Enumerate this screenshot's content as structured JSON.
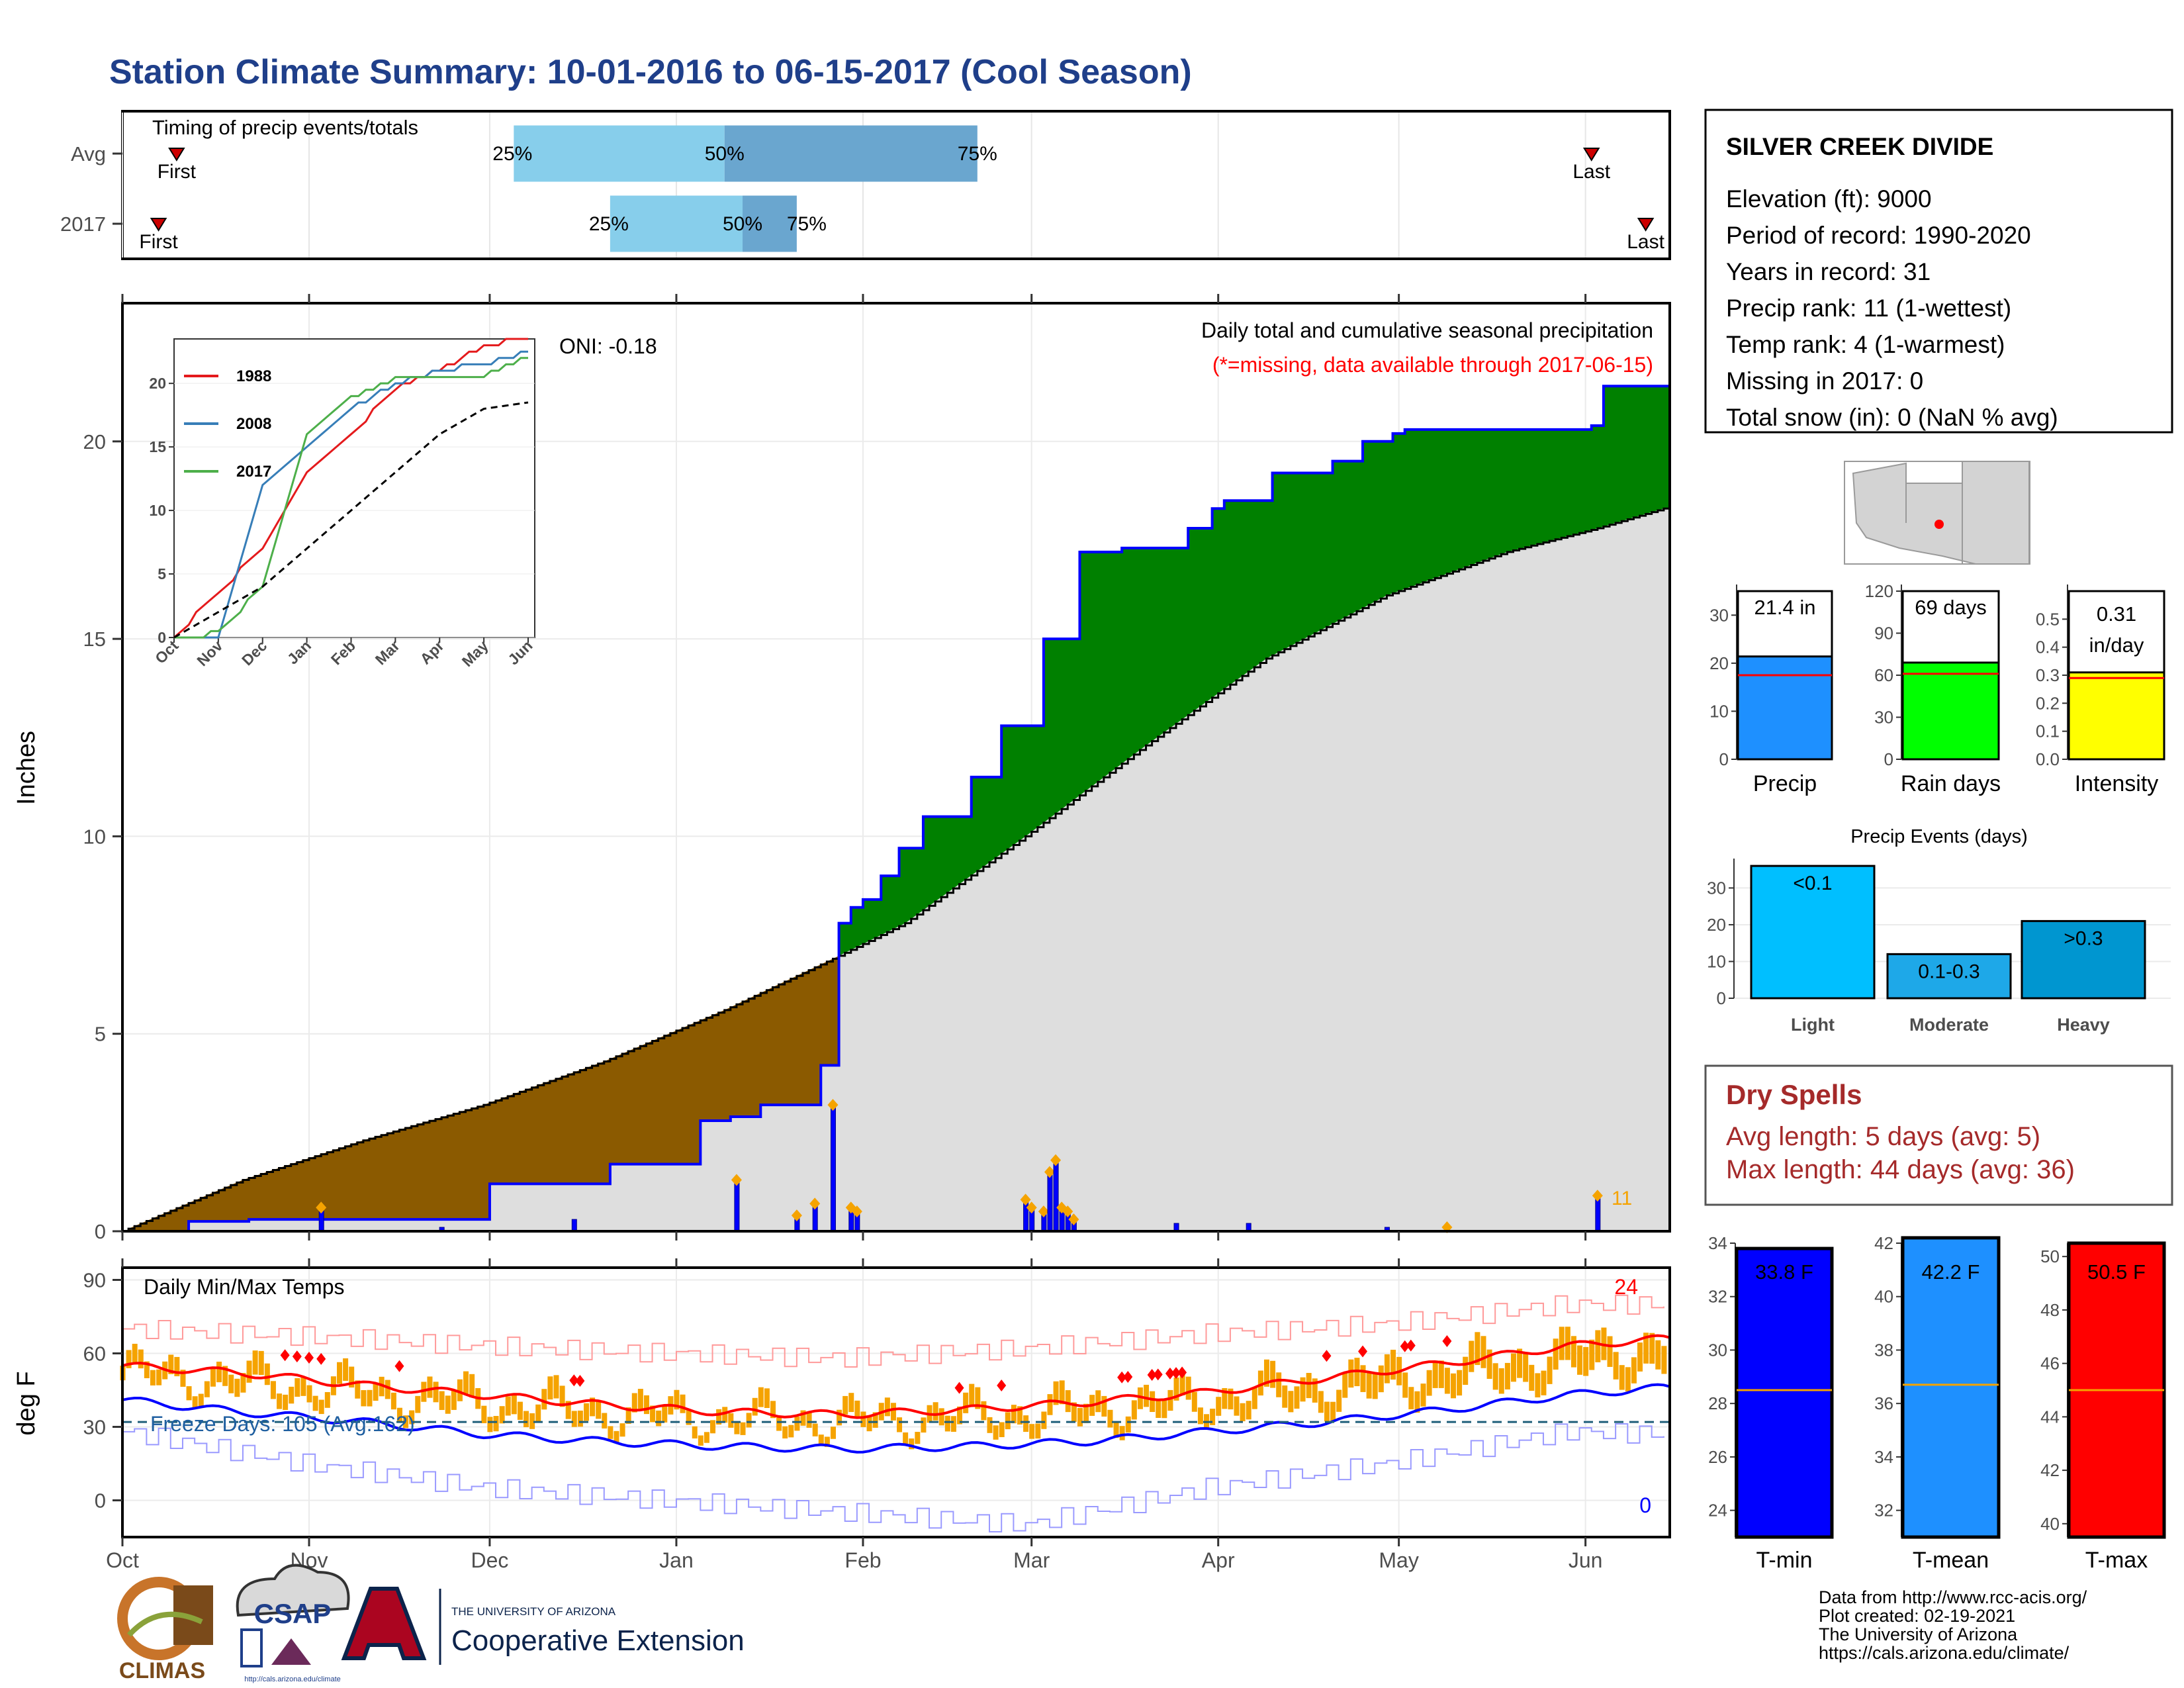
{
  "title": "Station Climate Summary: 10-01-2016 to 06-15-2017 (Cool Season)",
  "months": [
    "Oct",
    "Nov",
    "Dec",
    "Jan",
    "Feb",
    "Mar",
    "Apr",
    "May",
    "Jun"
  ],
  "timing": {
    "label": "Timing of precip events/totals",
    "rows": [
      {
        "label": "Avg",
        "first_label": "First",
        "last_label": "Last",
        "first_day": 9,
        "last_day": 244,
        "p25_label": "25%",
        "p50_label": "50%",
        "p75_label": "75%",
        "p25": 65,
        "p50": 100,
        "p75": 142
      },
      {
        "label": "2017",
        "first_label": "First",
        "last_label": "Last",
        "first_day": 6,
        "last_day": 253,
        "p25_label": "25%",
        "p50_label": "50%",
        "p75_label": "75%",
        "p25": 81,
        "p50": 103,
        "p75": 112
      }
    ]
  },
  "colors": {
    "accent_title": "#1f3f8a",
    "brown": "#8b5a00",
    "green": "#008000",
    "blue_line": "#0000ff",
    "grey": "#dedede",
    "orange": "#f5a300",
    "red": "#ff0000",
    "dry_red": "#a52a2a",
    "light_blue": "#87ceeb",
    "mid_blue": "#6aa6cf"
  },
  "main": {
    "ylabel": "Inches",
    "yticks": [
      "0",
      "5",
      "10",
      "15",
      "20"
    ],
    "ylim": [
      0,
      23.5
    ],
    "oni_label": "ONI: -0.18",
    "caption": "Daily total and cumulative seasonal precipitation",
    "missing_note": "(*=missing, data available through 2017-06-15)",
    "count_label": "11"
  },
  "inset": {
    "yticks": [
      "0",
      "5",
      "10",
      "15",
      "20"
    ],
    "xticks": [
      "Oct",
      "Nov",
      "Dec",
      "Jan",
      "Feb",
      "Mar",
      "Apr",
      "May",
      "Jun"
    ],
    "legend": [
      "1988",
      "2008",
      "2017"
    ]
  },
  "temps": {
    "ylabel": "deg F",
    "title": "Daily Min/Max Temps",
    "yticks": [
      "0",
      "30",
      "60",
      "90"
    ],
    "freeze_label": "Freeze Days: 105 (Avg:162)",
    "record_high_count": "24",
    "record_low_count": "0"
  },
  "station": {
    "name": "SILVER CREEK DIVIDE",
    "lines": [
      "Elevation (ft): 9000",
      "Period of record: 1990-2020",
      "Years in record: 31",
      "Precip rank: 11 (1-wettest)",
      "Temp rank: 4 (1-warmest)",
      "Missing in 2017: 0",
      "Total snow (in): 0 (NaN % avg)"
    ]
  },
  "summary_bars": [
    {
      "name": "Precip",
      "value_label": "21.4 in",
      "value": 21.4,
      "avg": 17.5,
      "ymax": 35,
      "ticks": [
        "0",
        "10",
        "20",
        "30"
      ],
      "color": "#1e90ff"
    },
    {
      "name": "Rain days",
      "value_label": "69 days",
      "value": 69,
      "avg": 61,
      "ymax": 120,
      "ticks": [
        "0",
        "30",
        "60",
        "90",
        "120"
      ],
      "color": "#00ff00"
    },
    {
      "name": "Intensity",
      "value_label_1": "0.31",
      "value_label_2": "in/day",
      "value": 0.31,
      "avg": 0.29,
      "ymax": 0.6,
      "ticks": [
        "0.0",
        "0.1",
        "0.2",
        "0.3",
        "0.4",
        "0.5"
      ],
      "color": "#ffff00"
    }
  ],
  "events": {
    "title": "Precip Events (days)",
    "ticks": [
      "0",
      "10",
      "20",
      "30"
    ],
    "bars": [
      {
        "name": "Light",
        "label": "<0.1",
        "value": 36,
        "color": "#00bfff"
      },
      {
        "name": "Moderate",
        "label": "0.1-0.3",
        "value": 12,
        "color": "#1ea8e8"
      },
      {
        "name": "Heavy",
        "label": ">0.3",
        "value": 21,
        "color": "#0096d0"
      }
    ]
  },
  "dry_spells": {
    "title": "Dry Spells",
    "avg_line": "Avg length: 5 days (avg: 5)",
    "max_line": "Max length: 44 days (avg: 36)"
  },
  "temp_bars": [
    {
      "name": "T-min",
      "value_label": "33.8 F",
      "value": 33.8,
      "avg": 28.5,
      "ymin": 23,
      "ymax": 34,
      "ticks": [
        "24",
        "26",
        "28",
        "30",
        "32",
        "34"
      ],
      "color": "#0000ff"
    },
    {
      "name": "T-mean",
      "value_label": "42.2 F",
      "value": 42.2,
      "avg": 36.7,
      "ymin": 31,
      "ymax": 42,
      "ticks": [
        "32",
        "34",
        "36",
        "38",
        "40",
        "42"
      ],
      "color": "#1e90ff"
    },
    {
      "name": "T-max",
      "value_label": "50.5 F",
      "value": 50.5,
      "avg": 45,
      "ymin": 39.5,
      "ymax": 50.5,
      "ticks": [
        "40",
        "42",
        "44",
        "46",
        "48",
        "50"
      ],
      "color": "#ff0000"
    }
  ],
  "credits": [
    "Data from http://www.rcc-acis.org/",
    "Plot created: 02-19-2021",
    "The University of Arizona",
    "https://cals.arizona.edu/climate/"
  ],
  "logos": {
    "climas": "CLIMAS",
    "csap": "CSAP",
    "csap_url": "http://cals.arizona.edu/climate",
    "ua_small": "THE UNIVERSITY OF ARIZONA",
    "ua_big": "Cooperative Extension"
  },
  "chart_data": [
    {
      "type": "area",
      "title": "Daily total and cumulative seasonal precipitation",
      "ylabel": "Inches",
      "ylim": [
        0,
        23.5
      ],
      "x_unit": "days since Oct 1",
      "series": [
        {
          "name": "2017 cumulative",
          "x": [
            0,
            10,
            20,
            40,
            60,
            80,
            95,
            100,
            105,
            110,
            115,
            118,
            120,
            122,
            125,
            128,
            132,
            140,
            145,
            152,
            158,
            165,
            170,
            176,
            178,
            180,
            182,
            190,
            200,
            205,
            210,
            212,
            216,
            230,
            240,
            243,
            245,
            256
          ],
          "y": [
            0,
            0.25,
            0.3,
            0.3,
            1.2,
            1.7,
            2.8,
            2.9,
            3.2,
            3.2,
            4.2,
            7.8,
            8.2,
            8.4,
            9.0,
            9.7,
            10.5,
            11.5,
            12.8,
            15.0,
            17.2,
            17.3,
            17.3,
            17.8,
            17.8,
            18.3,
            18.5,
            19.2,
            19.5,
            20.0,
            20.2,
            20.3,
            20.3,
            20.3,
            20.3,
            20.4,
            21.4,
            21.4
          ]
        },
        {
          "name": "average cumulative",
          "x": [
            0,
            20,
            40,
            60,
            80,
            100,
            118,
            130,
            150,
            170,
            190,
            210,
            230,
            245,
            256
          ],
          "y": [
            0,
            1.3,
            2.3,
            3.2,
            4.3,
            5.6,
            6.9,
            7.8,
            10.0,
            12.3,
            14.5,
            16.1,
            17.2,
            17.8,
            18.3
          ]
        },
        {
          "name": "daily precip",
          "x": [
            33,
            53,
            75,
            102,
            112,
            115,
            118,
            121,
            122,
            150,
            151,
            153,
            154,
            155,
            156,
            157,
            158,
            175,
            187,
            210,
            220,
            245
          ],
          "y": [
            0.6,
            0.1,
            0.3,
            1.3,
            0.4,
            0.7,
            3.2,
            0.6,
            0.5,
            0.8,
            0.6,
            0.5,
            1.5,
            1.8,
            0.6,
            0.5,
            0.3,
            0.2,
            0.2,
            0.1,
            0.1,
            0.9
          ]
        }
      ]
    },
    {
      "type": "line",
      "title": "",
      "ylim": [
        0,
        23
      ],
      "categories": [
        "Oct",
        "Nov",
        "Dec",
        "Jan",
        "Feb",
        "Mar",
        "Apr",
        "May",
        "Jun"
      ],
      "series": [
        {
          "name": "1988",
          "values": [
            0,
            3.5,
            7,
            13,
            16,
            19.5,
            21,
            23,
            23.5
          ]
        },
        {
          "name": "2008",
          "values": [
            0,
            0,
            12,
            15,
            18,
            20,
            21,
            21.5,
            22.5
          ]
        },
        {
          "name": "2017",
          "values": [
            0,
            0.3,
            4,
            16,
            19,
            20.3,
            20.5,
            20.5,
            22
          ]
        },
        {
          "name": "",
          "values": [
            0,
            2,
            4,
            7,
            10,
            13,
            16,
            18,
            18.5
          ]
        }
      ]
    },
    {
      "type": "line",
      "title": "Daily Min/Max Temps",
      "ylabel": "deg F",
      "ylim": [
        -15,
        95
      ],
      "x_unit": "days since Oct 1",
      "series": [
        {
          "name": "avg max",
          "x": [
            0,
            20,
            40,
            60,
            80,
            100,
            120,
            140,
            160,
            180,
            200,
            220,
            240,
            256
          ],
          "y": [
            55,
            52,
            47,
            43,
            39,
            36,
            35,
            37,
            40,
            44,
            50,
            56,
            63,
            66
          ]
        },
        {
          "name": "avg min",
          "x": [
            0,
            20,
            40,
            60,
            80,
            100,
            120,
            140,
            160,
            180,
            200,
            220,
            240,
            256
          ],
          "y": [
            41,
            36,
            32,
            27,
            24,
            22,
            21,
            22,
            24,
            28,
            32,
            37,
            43,
            46
          ]
        },
        {
          "name": "record high",
          "x": [
            0,
            30,
            60,
            90,
            120,
            150,
            180,
            210,
            240,
            256
          ],
          "y": [
            70,
            67,
            63,
            60,
            58,
            62,
            68,
            72,
            80,
            80
          ]
        },
        {
          "name": "record low",
          "x": [
            0,
            30,
            60,
            90,
            120,
            150,
            180,
            210,
            240,
            256
          ],
          "y": [
            28,
            15,
            5,
            0,
            -5,
            -10,
            5,
            15,
            28,
            27
          ]
        }
      ]
    },
    {
      "type": "bar",
      "title": "",
      "categories": [
        "Precip",
        "Rain days",
        "Intensity"
      ],
      "values": [
        21.4,
        69,
        0.31
      ]
    },
    {
      "type": "bar",
      "title": "Precip Events (days)",
      "categories": [
        "Light",
        "Moderate",
        "Heavy"
      ],
      "values": [
        36,
        12,
        21
      ]
    },
    {
      "type": "bar",
      "title": "",
      "categories": [
        "T-min",
        "T-mean",
        "T-max"
      ],
      "values": [
        33.8,
        42.2,
        50.5
      ]
    }
  ]
}
